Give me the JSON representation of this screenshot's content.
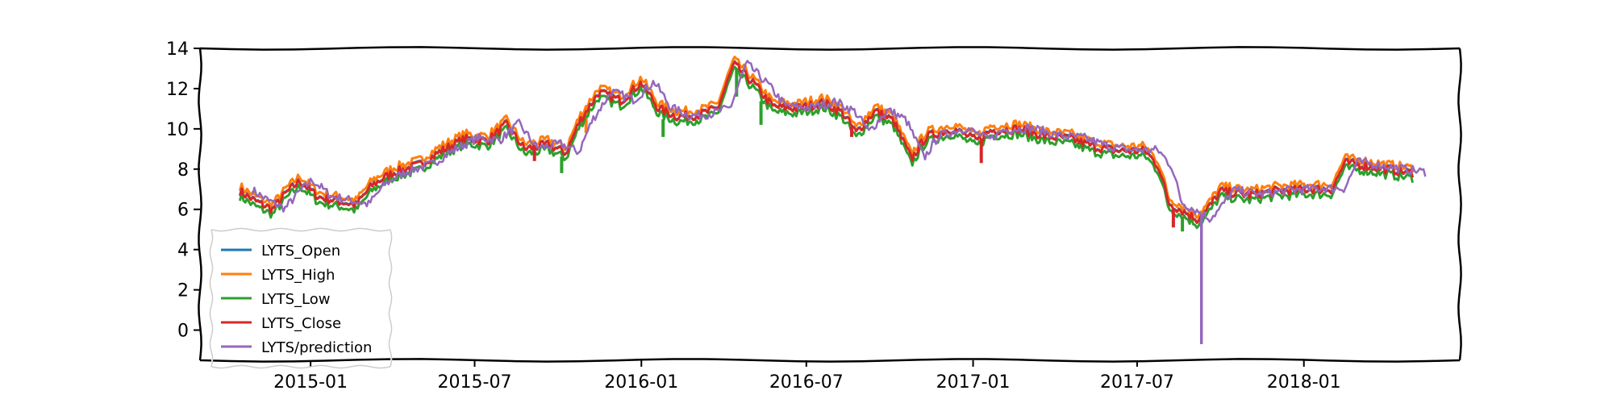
{
  "chart_data": {
    "type": "line",
    "title": "",
    "xlabel": "",
    "ylabel": "",
    "xlim": [
      "2014-09-01",
      "2018-06-22"
    ],
    "ylim": [
      -1.5,
      14
    ],
    "x_ticks": [
      "2015-01",
      "2015-07",
      "2016-01",
      "2016-07",
      "2017-01",
      "2017-07",
      "2018-01"
    ],
    "y_ticks": [
      0,
      2,
      4,
      6,
      8,
      10,
      12,
      14
    ],
    "grid": false,
    "legend_position": "lower-left",
    "series": [
      {
        "name": "LYTS_Open",
        "color": "#1f77b4"
      },
      {
        "name": "LYTS_High",
        "color": "#ff7f0e"
      },
      {
        "name": "LYTS_Low",
        "color": "#2ca02c"
      },
      {
        "name": "LYTS_Close",
        "color": "#d62728"
      },
      {
        "name": "LYTS/prediction",
        "color": "#9467bd"
      }
    ],
    "close_path": [
      [
        "2014-10-15",
        6.9
      ],
      [
        "2014-11-01",
        6.4
      ],
      [
        "2014-11-20",
        6.0
      ],
      [
        "2014-12-05",
        6.8
      ],
      [
        "2014-12-20",
        7.4
      ],
      [
        "2015-01-10",
        6.6
      ],
      [
        "2015-02-01",
        6.4
      ],
      [
        "2015-02-20",
        6.2
      ],
      [
        "2015-03-10",
        7.2
      ],
      [
        "2015-04-01",
        7.8
      ],
      [
        "2015-05-01",
        8.2
      ],
      [
        "2015-05-25",
        8.9
      ],
      [
        "2015-06-20",
        9.5
      ],
      [
        "2015-07-15",
        9.4
      ],
      [
        "2015-08-05",
        10.2
      ],
      [
        "2015-08-25",
        9.0
      ],
      [
        "2015-09-20",
        9.2
      ],
      [
        "2015-10-10",
        8.8
      ],
      [
        "2015-10-25",
        10.4
      ],
      [
        "2015-11-15",
        11.8
      ],
      [
        "2015-12-10",
        11.4
      ],
      [
        "2016-01-01",
        12.3
      ],
      [
        "2016-01-20",
        11.0
      ],
      [
        "2016-02-10",
        10.6
      ],
      [
        "2016-03-05",
        10.7
      ],
      [
        "2016-03-25",
        11.0
      ],
      [
        "2016-04-12",
        13.2
      ],
      [
        "2016-05-05",
        12.2
      ],
      [
        "2016-05-25",
        11.1
      ],
      [
        "2016-06-20",
        11.0
      ],
      [
        "2016-07-20",
        11.3
      ],
      [
        "2016-08-10",
        10.8
      ],
      [
        "2016-08-25",
        9.8
      ],
      [
        "2016-09-15",
        10.9
      ],
      [
        "2016-10-05",
        10.4
      ],
      [
        "2016-10-25",
        8.5
      ],
      [
        "2016-11-10",
        9.6
      ],
      [
        "2016-12-10",
        10.0
      ],
      [
        "2017-01-05",
        9.4
      ],
      [
        "2017-01-20",
        9.9
      ],
      [
        "2017-02-20",
        10.0
      ],
      [
        "2017-03-25",
        9.6
      ],
      [
        "2017-04-20",
        9.5
      ],
      [
        "2017-05-15",
        9.1
      ],
      [
        "2017-06-10",
        8.9
      ],
      [
        "2017-07-10",
        8.9
      ],
      [
        "2017-07-25",
        8.1
      ],
      [
        "2017-08-05",
        6.3
      ],
      [
        "2017-08-25",
        5.8
      ],
      [
        "2017-09-05",
        5.5
      ],
      [
        "2017-09-15",
        5.9
      ],
      [
        "2017-10-01",
        6.9
      ],
      [
        "2017-11-01",
        6.7
      ],
      [
        "2017-12-01",
        6.9
      ],
      [
        "2018-01-10",
        7.0
      ],
      [
        "2018-02-01",
        7.0
      ],
      [
        "2018-02-15",
        8.3
      ],
      [
        "2018-03-05",
        8.2
      ],
      [
        "2018-04-01",
        8.0
      ],
      [
        "2018-05-01",
        7.8
      ]
    ],
    "close_spikes": [
      [
        "2015-09-05",
        8.4
      ],
      [
        "2016-08-20",
        9.6
      ],
      [
        "2017-01-10",
        8.3
      ],
      [
        "2017-08-10",
        5.1
      ]
    ],
    "low_spikes": [
      [
        "2015-10-05",
        7.8
      ],
      [
        "2016-01-25",
        9.6
      ],
      [
        "2016-04-15",
        11.6
      ],
      [
        "2016-05-12",
        10.2
      ],
      [
        "2017-08-20",
        4.9
      ]
    ],
    "high_spikes": [
      [
        "2015-11-01",
        9.8
      ],
      [
        "2016-09-10",
        10.5
      ]
    ],
    "prediction_spike": [
      "2017-09-10",
      -0.7
    ]
  }
}
